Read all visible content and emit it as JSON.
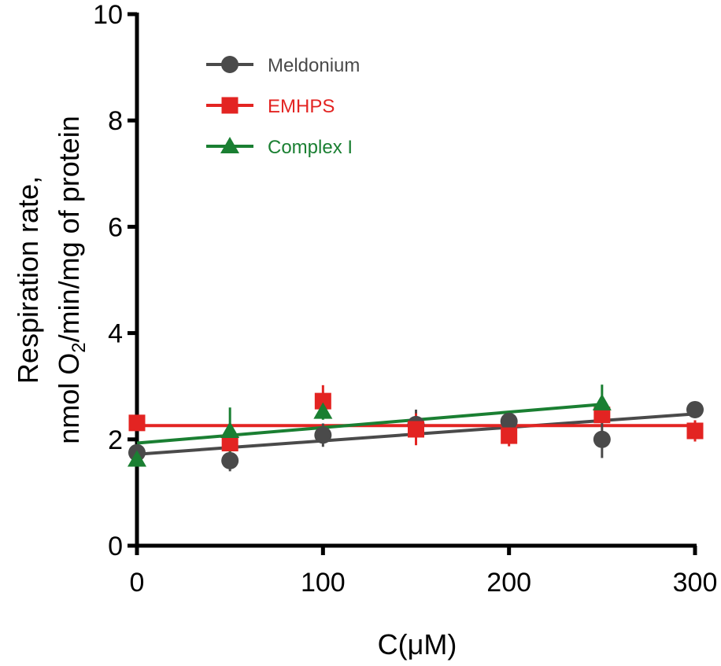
{
  "chart_data": {
    "type": "scatter",
    "title": "",
    "xlabel": "C(μM)",
    "ylabel_line1": "Respiration rate,",
    "ylabel_line2_pre": "nmol O",
    "ylabel_line2_sub": "2",
    "ylabel_line2_post": "/min/mg of protein",
    "xlim": [
      0,
      300
    ],
    "ylim": [
      0,
      10
    ],
    "xticks": [
      0,
      100,
      200,
      300
    ],
    "yticks": [
      0,
      2,
      4,
      6,
      8,
      10
    ],
    "xtick_labels": [
      "0",
      "100",
      "200",
      "300"
    ],
    "ytick_labels": [
      "0",
      "2",
      "4",
      "6",
      "8",
      "10"
    ],
    "grid": false,
    "legend_position": "top-left",
    "series": [
      {
        "name": "Meldonium",
        "color": "#4a4a4a",
        "marker": "circle",
        "x": [
          0,
          50,
          100,
          150,
          200,
          250,
          300
        ],
        "y": [
          1.75,
          1.6,
          2.08,
          2.28,
          2.34,
          2.0,
          2.56
        ],
        "err": [
          0.1,
          0.2,
          0.22,
          0.28,
          0.1,
          0.35,
          0.12
        ],
        "fit": {
          "x": [
            0,
            300
          ],
          "y": [
            1.72,
            2.48
          ]
        }
      },
      {
        "name": "EMHPS",
        "color": "#e32422",
        "marker": "square",
        "x": [
          0,
          50,
          100,
          150,
          200,
          250,
          300
        ],
        "y": [
          2.31,
          1.93,
          2.72,
          2.19,
          2.07,
          2.46,
          2.16
        ],
        "err": [
          0.05,
          0.1,
          0.3,
          0.3,
          0.2,
          0.1,
          0.2
        ],
        "fit": {
          "x": [
            0,
            300
          ],
          "y": [
            2.26,
            2.26
          ]
        }
      },
      {
        "name": "Complex I",
        "color": "#1a7f32",
        "marker": "triangle",
        "x": [
          0,
          50,
          100,
          250
        ],
        "y": [
          1.62,
          2.16,
          2.52,
          2.68
        ],
        "err": [
          0.05,
          0.44,
          0.15,
          0.35
        ],
        "fit": {
          "x": [
            0,
            250
          ],
          "y": [
            1.93,
            2.66
          ]
        }
      }
    ]
  }
}
